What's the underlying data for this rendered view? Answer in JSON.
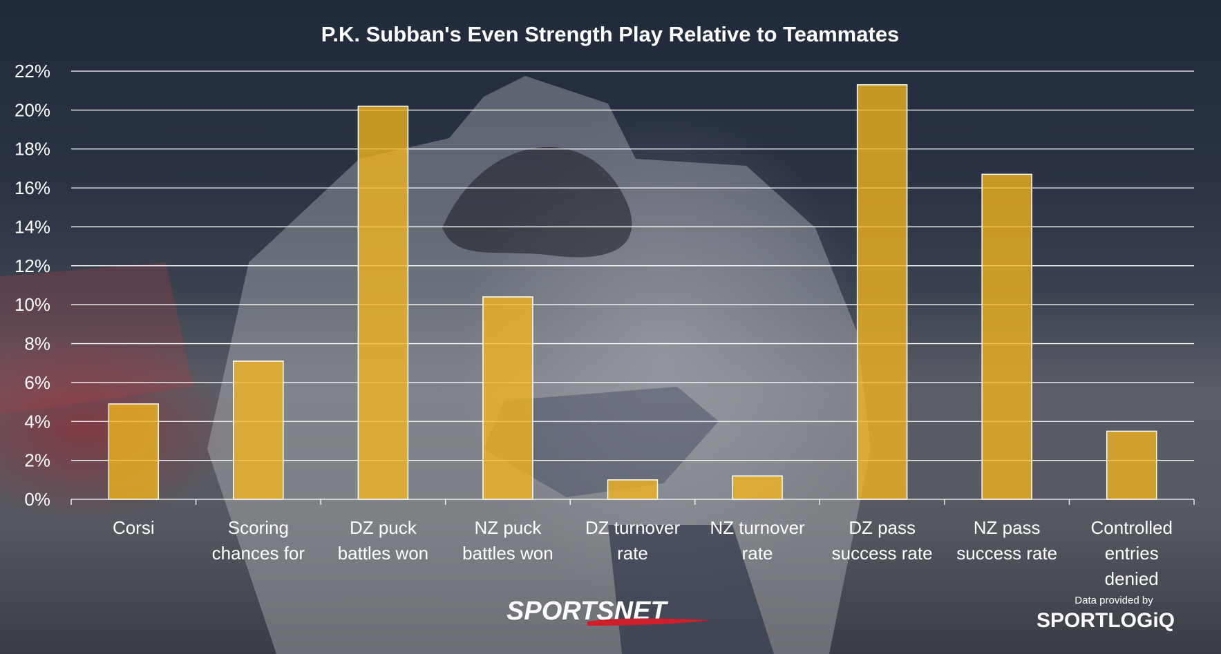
{
  "chart_data": {
    "type": "bar",
    "title": "P.K. Subban's Even Strength Play Relative to Teammates",
    "xlabel": "",
    "ylabel": "",
    "categories": [
      [
        "Corsi"
      ],
      [
        "Scoring",
        "chances for"
      ],
      [
        "DZ puck",
        "battles won"
      ],
      [
        "NZ puck",
        "battles won"
      ],
      [
        "DZ turnover",
        "rate"
      ],
      [
        "NZ turnover",
        "rate"
      ],
      [
        "DZ pass",
        "success rate"
      ],
      [
        "NZ pass",
        "success rate"
      ],
      [
        "Controlled",
        "entries",
        "denied"
      ]
    ],
    "values": [
      4.9,
      7.1,
      20.2,
      10.4,
      1.0,
      1.2,
      21.3,
      16.7,
      3.5
    ],
    "ylim": [
      0,
      22
    ],
    "yticks": [
      0,
      2,
      4,
      6,
      8,
      10,
      12,
      14,
      16,
      18,
      20,
      22
    ],
    "ytick_suffix": "%",
    "grid": true,
    "bar_color": "#f2b51f"
  },
  "branding": {
    "sportsnet": "SPORTSNET",
    "credit": "Data provided by",
    "sportlogiq": "SPORTLOGiQ"
  }
}
